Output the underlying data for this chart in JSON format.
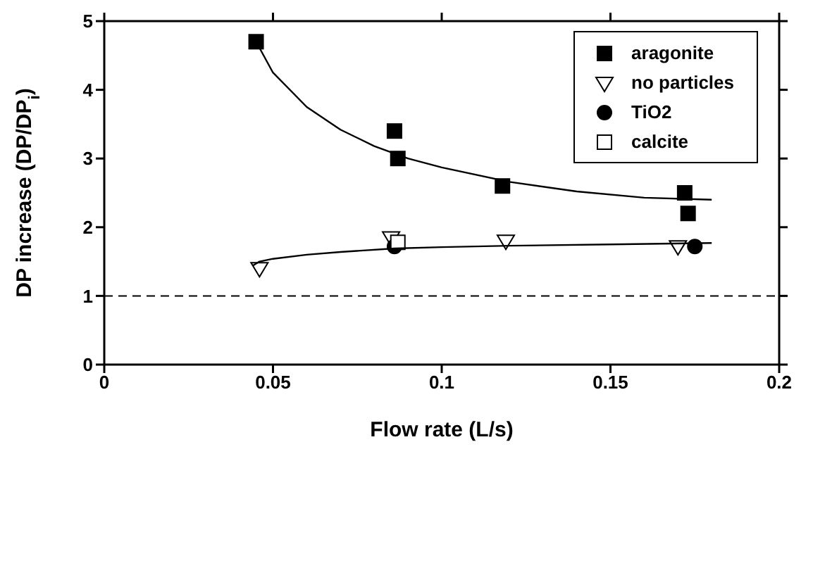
{
  "chart_data": {
    "type": "scatter",
    "xlabel": "Flow rate (L/s)",
    "ylabel": "DP increase (DP/DP$_{i}$)",
    "xlim": [
      0,
      0.2
    ],
    "xticks": [
      0,
      0.05,
      0.1,
      0.15,
      0.2
    ],
    "ylim": [
      0,
      5
    ],
    "yticks": [
      0,
      1,
      2,
      3,
      4,
      5
    ],
    "legend": "top right",
    "series": [
      {
        "name": "aragonite",
        "marker": "square",
        "color": "#000000",
        "x": [
          0.045,
          0.086,
          0.087,
          0.118,
          0.172,
          0.173
        ],
        "values": [
          4.7,
          3.4,
          3.0,
          2.6,
          2.5,
          2.2
        ]
      },
      {
        "name": "no particles",
        "marker": "triangle",
        "color": "#ffffff",
        "x": [
          0.046,
          0.085,
          0.119,
          0.17
        ],
        "values": [
          1.4,
          1.85,
          1.8,
          1.72
        ]
      },
      {
        "name": "TiO2",
        "marker": "circle",
        "color": "#000000",
        "x": [
          0.086,
          0.175
        ],
        "values": [
          1.72,
          1.72
        ]
      },
      {
        "name": "calcite",
        "marker": "square",
        "color": "#ffffff",
        "x": [
          0.087
        ],
        "values": [
          1.78
        ]
      },
      {
        "type": "line",
        "color": "#000000",
        "x": [
          0.045,
          0.05,
          0.06,
          0.07,
          0.08,
          0.09,
          0.1,
          0.12,
          0.14,
          0.16,
          0.18
        ],
        "values": [
          4.7,
          4.25,
          3.75,
          3.42,
          3.18,
          3.0,
          2.87,
          2.66,
          2.52,
          2.43,
          2.4
        ]
      },
      {
        "type": "line",
        "color": "#000000",
        "x": [
          0.044,
          0.046,
          0.05,
          0.06,
          0.07,
          0.086,
          0.1,
          0.12,
          0.15,
          0.18
        ],
        "values": [
          1.44,
          1.5,
          1.54,
          1.6,
          1.64,
          1.69,
          1.71,
          1.73,
          1.75,
          1.77
        ]
      }
    ],
    "ref_lines": [
      {
        "axis": "y",
        "value": 1,
        "line_style": "dashed",
        "color": "#000000"
      }
    ]
  }
}
